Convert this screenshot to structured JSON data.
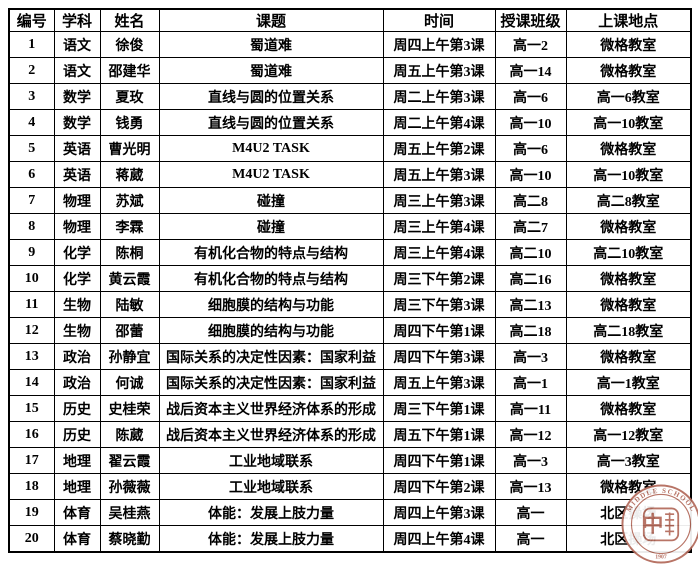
{
  "page": {
    "background_color": "#ffffff",
    "text_color": "#000000",
    "border_color": "#000000"
  },
  "table": {
    "headers": [
      {
        "label": "编号"
      },
      {
        "label": "学科"
      },
      {
        "label": "姓名"
      },
      {
        "label": "课题"
      },
      {
        "label": "时间"
      },
      {
        "label": "授课班级"
      },
      {
        "label": "上课地点"
      }
    ],
    "rows": [
      [
        "1",
        "语文",
        "徐俊",
        "蜀道难",
        "周四上午第3课",
        "高一2",
        "微格教室"
      ],
      [
        "2",
        "语文",
        "邵建华",
        "蜀道难",
        "周五上午第3课",
        "高一14",
        "微格教室"
      ],
      [
        "3",
        "数学",
        "夏玫",
        "直线与圆的位置关系",
        "周二上午第3课",
        "高一6",
        "高一6教室"
      ],
      [
        "4",
        "数学",
        "钱勇",
        "直线与圆的位置关系",
        "周二上午第4课",
        "高一10",
        "高一10教室"
      ],
      [
        "5",
        "英语",
        "曹光明",
        "M4U2 TASK",
        "周五上午第2课",
        "高一6",
        "微格教室"
      ],
      [
        "6",
        "英语",
        "蒋葳",
        "M4U2 TASK",
        "周五上午第3课",
        "高一10",
        "高一10教室"
      ],
      [
        "7",
        "物理",
        "苏斌",
        "碰撞",
        "周三上午第3课",
        "高二8",
        "高二8教室"
      ],
      [
        "8",
        "物理",
        "李霖",
        "碰撞",
        "周三上午第4课",
        "高二7",
        "微格教室"
      ],
      [
        "9",
        "化学",
        "陈桐",
        "有机化合物的特点与结构",
        "周三上午第4课",
        "高二10",
        "高二10教室"
      ],
      [
        "10",
        "化学",
        "黄云霞",
        "有机化合物的特点与结构",
        "周三下午第2课",
        "高二16",
        "微格教室"
      ],
      [
        "11",
        "生物",
        "陆敏",
        "细胞膜的结构与功能",
        "周三下午第3课",
        "高二13",
        "微格教室"
      ],
      [
        "12",
        "生物",
        "邵蕾",
        "细胞膜的结构与功能",
        "周四下午第1课",
        "高二18",
        "高二18教室"
      ],
      [
        "13",
        "政治",
        "孙静宜",
        "国际关系的决定性因素：国家利益",
        "周四下午第3课",
        "高一3",
        "微格教室"
      ],
      [
        "14",
        "政治",
        "何诚",
        "国际关系的决定性因素：国家利益",
        "周五上午第3课",
        "高一1",
        "高一1教室"
      ],
      [
        "15",
        "历史",
        "史桂荣",
        "战后资本主义世界经济体系的形成",
        "周三下午第1课",
        "高一11",
        "微格教室"
      ],
      [
        "16",
        "历史",
        "陈葳",
        "战后资本主义世界经济体系的形成",
        "周五下午第1课",
        "高一12",
        "高一12教室"
      ],
      [
        "17",
        "地理",
        "翟云霞",
        "工业地域联系",
        "周四下午第1课",
        "高一3",
        "高一3教室"
      ],
      [
        "18",
        "地理",
        "孙薇薇",
        "工业地域联系",
        "周四下午第2课",
        "高一13",
        "微格教室"
      ],
      [
        "19",
        "体育",
        "吴桂燕",
        "体能：发展上肢力量",
        "周四上午第3课",
        "高一",
        "北区操场"
      ],
      [
        "20",
        "体育",
        "蔡晓勤",
        "体能：发展上肢力量",
        "周四上午第4课",
        "高一",
        "北区操场"
      ]
    ]
  },
  "seal": {
    "arc_text_top": "MIDDLE SCHOOL",
    "bottom_text": "1907",
    "emblem_text": "中",
    "color": "#b2695a"
  }
}
